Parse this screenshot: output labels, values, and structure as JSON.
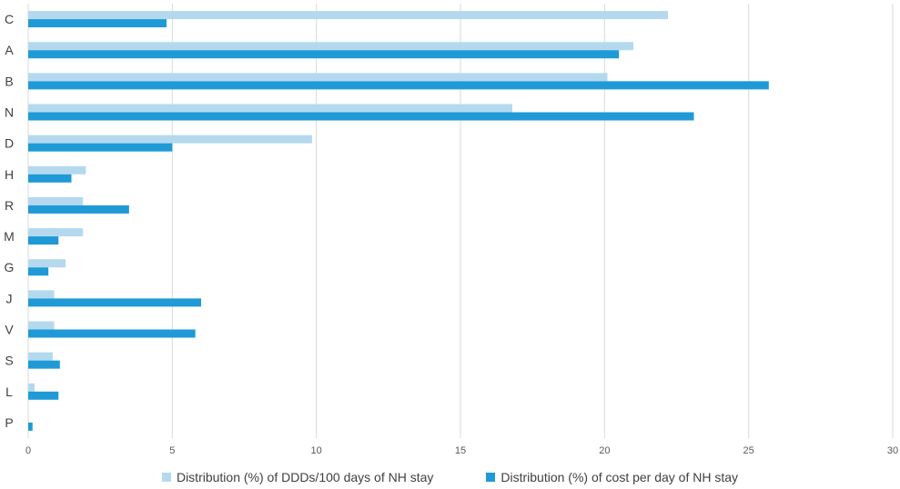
{
  "chart_data": {
    "type": "bar",
    "orientation": "horizontal",
    "title": "",
    "xlabel": "",
    "ylabel": "",
    "categories": [
      "C",
      "A",
      "B",
      "N",
      "D",
      "H",
      "R",
      "M",
      "G",
      "J",
      "V",
      "S",
      "L",
      "P"
    ],
    "series": [
      {
        "name": "Distribution (%) of DDDs/100 days of NH stay",
        "color": "#b4d9ef",
        "values": [
          22.2,
          21.0,
          20.1,
          16.8,
          9.85,
          2.0,
          1.9,
          1.9,
          1.3,
          0.9,
          0.9,
          0.85,
          0.22,
          0.0
        ]
      },
      {
        "name": "Distribution (%) of cost per day of NH stay",
        "color": "#1f9ad6",
        "values": [
          4.8,
          20.5,
          25.7,
          23.1,
          5.0,
          1.5,
          3.5,
          1.05,
          0.7,
          6.0,
          5.8,
          1.1,
          1.05,
          0.15
        ]
      }
    ],
    "xlim": [
      0,
      30
    ],
    "xticks": [
      "0",
      "5",
      "10",
      "15",
      "20",
      "25",
      "30"
    ],
    "grid": "vertical",
    "legend_position": "bottom"
  }
}
